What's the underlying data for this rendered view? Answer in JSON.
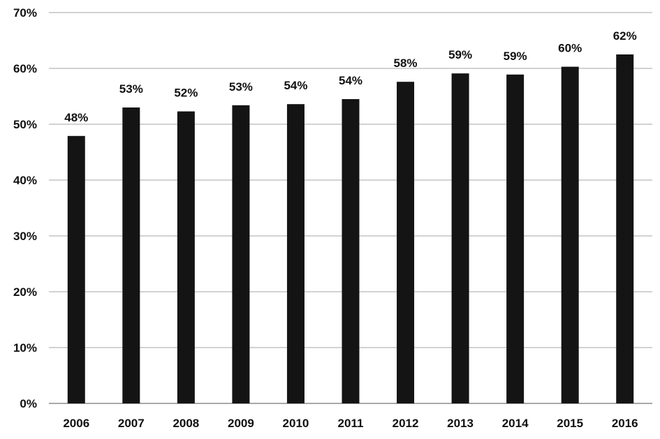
{
  "chart_data": {
    "type": "bar",
    "title": "",
    "xlabel": "",
    "ylabel": "",
    "categories": [
      "2006",
      "2007",
      "2008",
      "2009",
      "2010",
      "2011",
      "2012",
      "2013",
      "2014",
      "2015",
      "2016"
    ],
    "values": [
      48,
      53,
      52,
      53,
      54,
      54,
      58,
      59,
      59,
      60,
      62
    ],
    "bar_values": [
      47.9,
      53.0,
      52.3,
      53.4,
      53.6,
      54.5,
      57.6,
      59.1,
      58.9,
      60.3,
      62.5
    ],
    "data_labels": [
      "48%",
      "53%",
      "52%",
      "53%",
      "54%",
      "54%",
      "58%",
      "59%",
      "59%",
      "60%",
      "62%"
    ],
    "ylim": [
      0,
      70
    ],
    "yticks": [
      0,
      10,
      20,
      30,
      40,
      50,
      60,
      70
    ],
    "ytick_labels": [
      "0%",
      "10%",
      "20%",
      "30%",
      "40%",
      "50%",
      "60%",
      "70%"
    ],
    "grid": true,
    "legend": "none",
    "colors": {
      "bar": "#141414",
      "grid": "#b8b8b8",
      "text": "#111111"
    }
  }
}
